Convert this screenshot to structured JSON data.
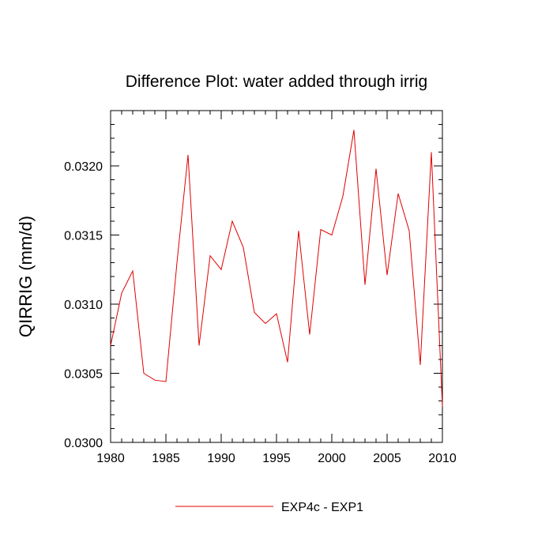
{
  "chart_data": {
    "type": "line",
    "title": "Difference Plot: water added through irrig",
    "xlabel": "",
    "ylabel": "QIRRIG  (mm/d)",
    "xlim": [
      1980,
      2010
    ],
    "ylim": [
      0.03,
      0.0324
    ],
    "x_ticks": [
      1980,
      1985,
      1990,
      1995,
      2000,
      2005,
      2010
    ],
    "y_ticks": [
      0.03,
      0.0305,
      0.031,
      0.0315,
      0.032
    ],
    "y_tick_labels": [
      "0.0300",
      "0.0305",
      "0.0310",
      "0.0315",
      "0.0320"
    ],
    "x_tick_labels": [
      "1980",
      "1985",
      "1990",
      "1995",
      "2000",
      "2005",
      "2010"
    ],
    "series": [
      {
        "name": "EXP4c - EXP1",
        "color": "#e00000",
        "x": [
          1980,
          1981,
          1982,
          1983,
          1984,
          1985,
          1986,
          1987,
          1988,
          1989,
          1990,
          1991,
          1992,
          1993,
          1994,
          1995,
          1996,
          1997,
          1998,
          1999,
          2000,
          2001,
          2002,
          2003,
          2004,
          2005,
          2006,
          2007,
          2008,
          2009,
          2010
        ],
        "values": [
          0.0307,
          0.03108,
          0.03124,
          0.0305,
          0.03045,
          0.03044,
          0.0313,
          0.03208,
          0.0307,
          0.03135,
          0.03125,
          0.0316,
          0.03141,
          0.03094,
          0.03086,
          0.03093,
          0.03058,
          0.03153,
          0.03078,
          0.03154,
          0.0315,
          0.03178,
          0.03226,
          0.03114,
          0.03198,
          0.03121,
          0.0318,
          0.03153,
          0.03056,
          0.0321,
          0.03026
        ]
      }
    ],
    "legend": {
      "position": "bottom-center",
      "entries": [
        "EXP4c - EXP1"
      ]
    }
  }
}
